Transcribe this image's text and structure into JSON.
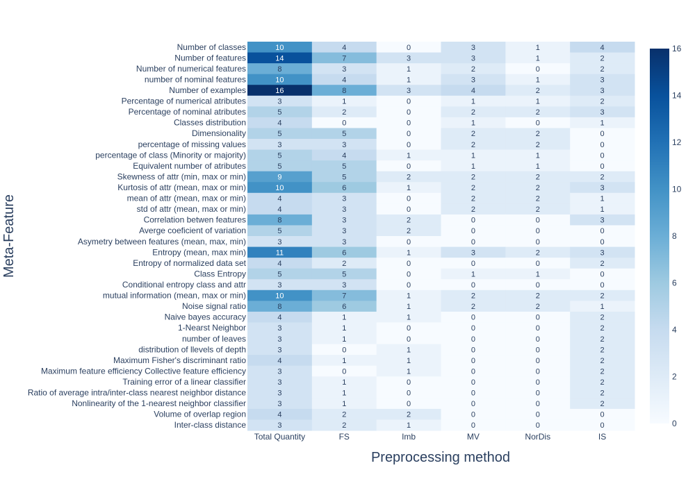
{
  "chart_data": {
    "type": "heatmap",
    "title": "",
    "xlabel": "Preprocessing method",
    "ylabel": "Meta-Feature",
    "columns": [
      "Total Quantity",
      "FS",
      "Imb",
      "MV",
      "NorDis",
      "IS"
    ],
    "rows": [
      "Number of classes",
      "Number of features",
      "Number of numerical features",
      "number of nominal features",
      "Number of examples",
      "Percentage of numerical atributes",
      "Percentage of nominal atributes",
      "Classes distribution",
      "Dimensionality",
      "percentage of missing values",
      "percentage of class (Minority or majority)",
      "Equivalent number of atributes",
      "Skewness of attr (min, max or min)",
      "Kurtosis of attr (mean, max or min)",
      "mean of attr (mean, max or min)",
      "std of attr (mean, max or min)",
      "Correlation betwen features",
      "Averge coeficient of variation",
      "Asymetry between features (mean, max, min)",
      "Entropy (mean, max min)",
      "Entropy of normalized data set",
      "Class Entropy",
      "Conditional entropy class and attr",
      "mutual information (mean, max or min)",
      "Noise signal ratio",
      "Naive bayes accuracy",
      "1-Nearst Neighbor",
      "number of leaves",
      "distribution of llevels of depth",
      "Maximum Fisher's discriminant ratio",
      "Maximum feature efficiency Collective feature efficiency",
      "Training error of a linear classifier",
      "Ratio of average intra/inter-class nearest neighbor distance",
      "Nonlinearity of the 1-nearest neighbor classifier",
      "Volume of overlap region",
      "Inter-class distance"
    ],
    "values": [
      [
        10,
        4,
        0,
        3,
        1,
        4
      ],
      [
        14,
        7,
        3,
        3,
        1,
        2
      ],
      [
        8,
        3,
        1,
        2,
        0,
        2
      ],
      [
        10,
        4,
        1,
        3,
        1,
        3
      ],
      [
        16,
        8,
        3,
        4,
        2,
        3
      ],
      [
        3,
        1,
        0,
        1,
        1,
        2
      ],
      [
        5,
        2,
        0,
        2,
        2,
        3
      ],
      [
        4,
        0,
        0,
        1,
        0,
        1
      ],
      [
        5,
        5,
        0,
        2,
        2,
        0
      ],
      [
        3,
        3,
        0,
        2,
        2,
        0
      ],
      [
        5,
        4,
        1,
        1,
        1,
        0
      ],
      [
        5,
        5,
        0,
        1,
        1,
        0
      ],
      [
        9,
        5,
        2,
        2,
        2,
        2
      ],
      [
        10,
        6,
        1,
        2,
        2,
        3
      ],
      [
        4,
        3,
        0,
        2,
        2,
        1
      ],
      [
        4,
        3,
        0,
        2,
        2,
        1
      ],
      [
        8,
        3,
        2,
        0,
        0,
        3
      ],
      [
        5,
        3,
        2,
        0,
        0,
        0
      ],
      [
        3,
        3,
        0,
        0,
        0,
        0
      ],
      [
        11,
        6,
        1,
        3,
        2,
        3
      ],
      [
        4,
        2,
        0,
        0,
        0,
        2
      ],
      [
        5,
        5,
        0,
        1,
        1,
        0
      ],
      [
        3,
        3,
        0,
        0,
        0,
        0
      ],
      [
        10,
        7,
        1,
        2,
        2,
        2
      ],
      [
        8,
        6,
        1,
        2,
        2,
        1
      ],
      [
        4,
        1,
        1,
        0,
        0,
        2
      ],
      [
        3,
        1,
        0,
        0,
        0,
        2
      ],
      [
        3,
        1,
        0,
        0,
        0,
        2
      ],
      [
        3,
        0,
        1,
        0,
        0,
        2
      ],
      [
        4,
        1,
        1,
        0,
        0,
        2
      ],
      [
        3,
        0,
        1,
        0,
        0,
        2
      ],
      [
        3,
        1,
        0,
        0,
        0,
        2
      ],
      [
        3,
        1,
        0,
        0,
        0,
        2
      ],
      [
        3,
        1,
        0,
        0,
        0,
        2
      ],
      [
        4,
        2,
        2,
        0,
        0,
        0
      ],
      [
        3,
        2,
        1,
        0,
        0,
        0
      ]
    ],
    "zrange": [
      0,
      16
    ],
    "colorbar_ticks": [
      0,
      2,
      4,
      6,
      8,
      10,
      12,
      14,
      16
    ],
    "colorscale": "Blues",
    "show_cell_values": true,
    "grid": false,
    "colorbar_position": "right"
  }
}
